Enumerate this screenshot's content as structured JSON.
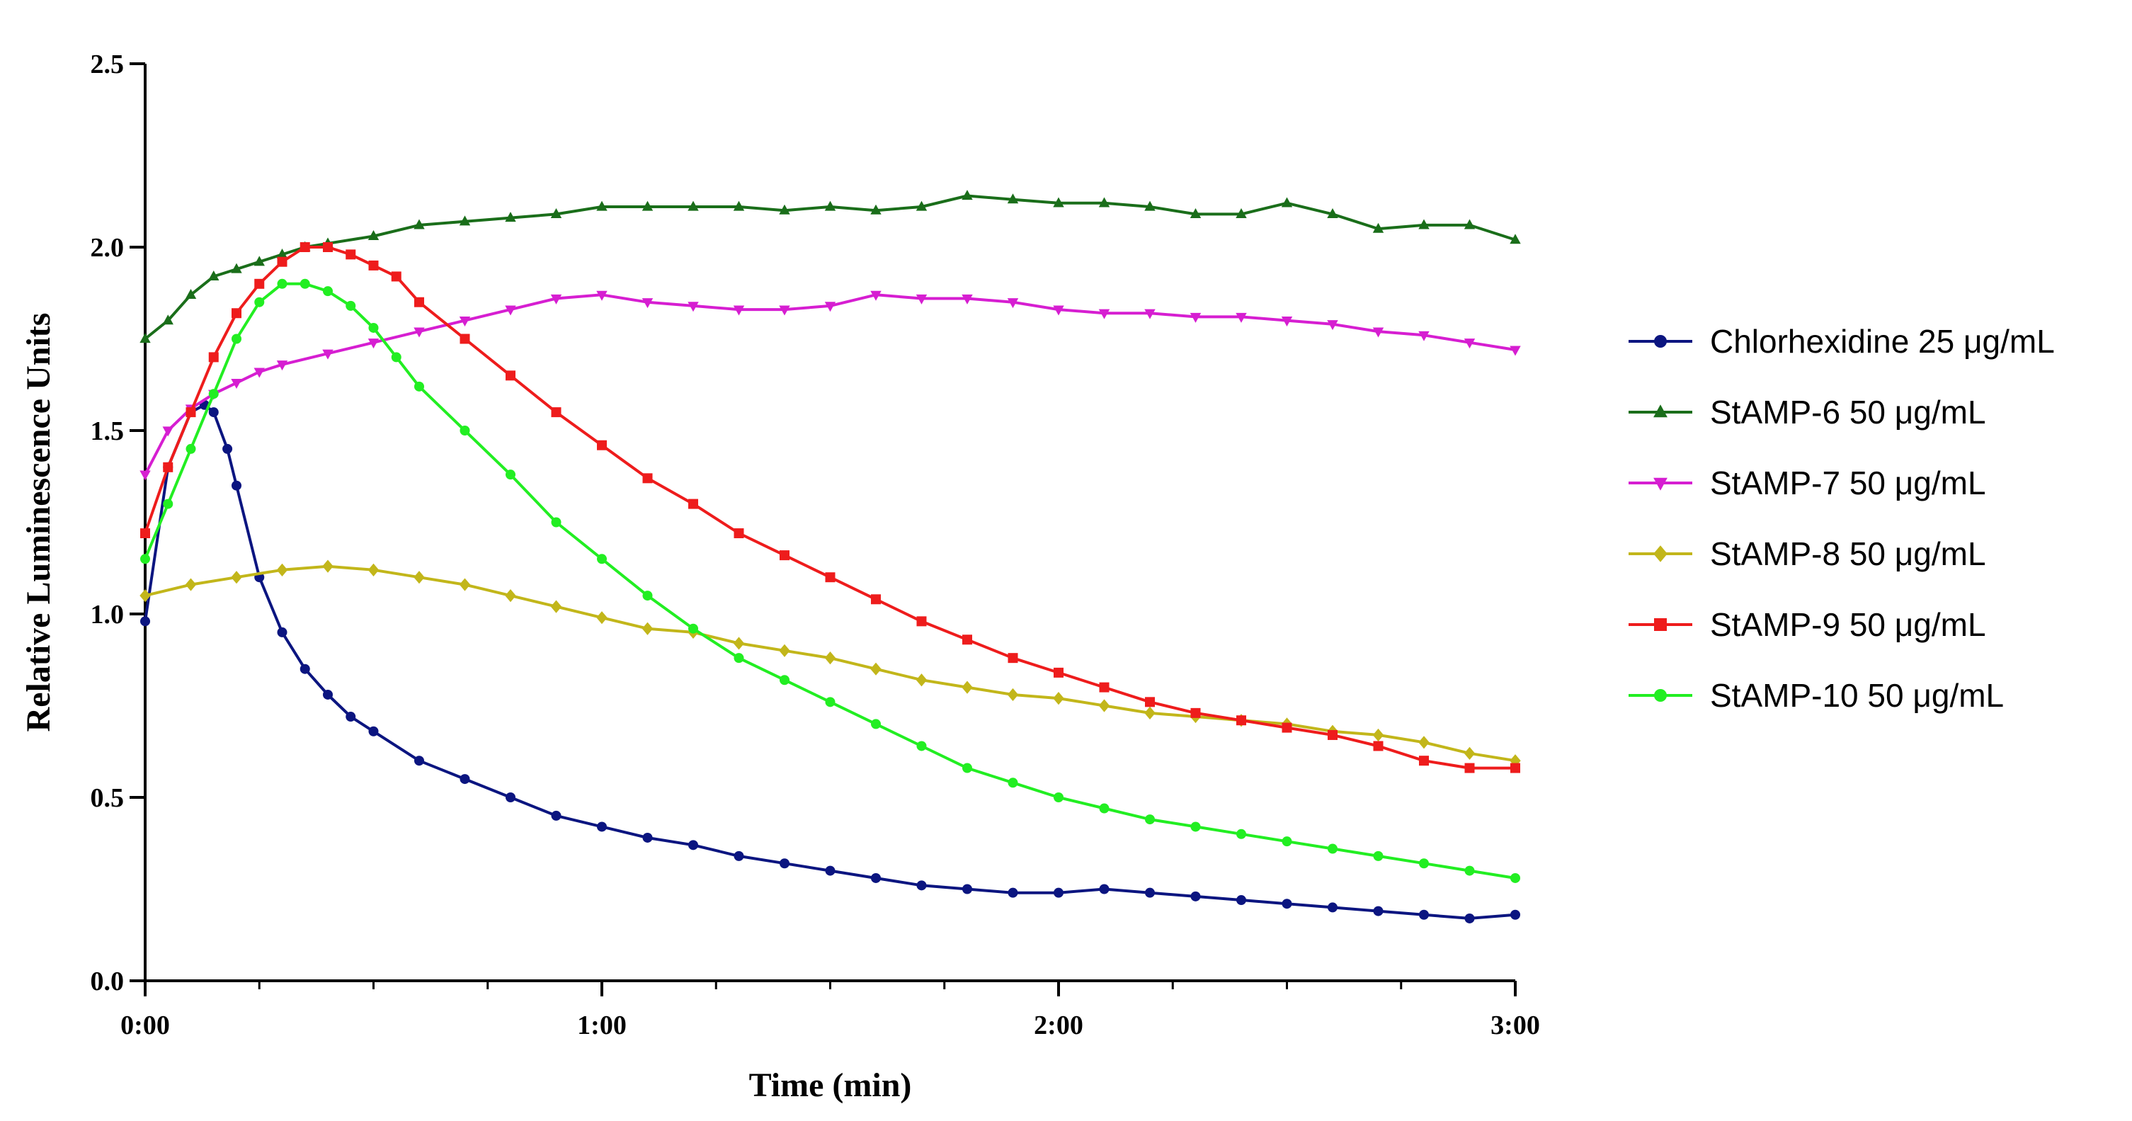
{
  "chart_data": {
    "type": "scatter",
    "title": "",
    "xlabel": "Time (min)",
    "ylabel": "Relative Luminescence Units",
    "xlim": [
      0,
      3
    ],
    "ylim": [
      0,
      2.5
    ],
    "grid": false,
    "legend_position": "right",
    "x_ticks": [
      {
        "value": 0,
        "label": "0:00"
      },
      {
        "value": 1,
        "label": "1:00"
      },
      {
        "value": 2,
        "label": "2:00"
      },
      {
        "value": 3,
        "label": "3:00"
      }
    ],
    "y_ticks": [
      {
        "value": 0,
        "label": "0.0"
      },
      {
        "value": 0.5,
        "label": "0.5"
      },
      {
        "value": 1,
        "label": "1.0"
      },
      {
        "value": 1.5,
        "label": "1.5"
      },
      {
        "value": 2,
        "label": "2.0"
      },
      {
        "value": 2.5,
        "label": "2.5"
      }
    ],
    "series": [
      {
        "name": "Chlorhexidine 25 μg/mL",
        "color": "#0b1580",
        "marker": "circle",
        "x": [
          0.0,
          0.05,
          0.1,
          0.13,
          0.15,
          0.18,
          0.2,
          0.25,
          0.3,
          0.35,
          0.4,
          0.45,
          0.5,
          0.6,
          0.7,
          0.8,
          0.9,
          1.0,
          1.1,
          1.2,
          1.3,
          1.4,
          1.5,
          1.6,
          1.7,
          1.8,
          1.9,
          2.0,
          2.1,
          2.2,
          2.3,
          2.4,
          2.5,
          2.6,
          2.7,
          2.8,
          2.9,
          3.0
        ],
        "y": [
          0.98,
          1.4,
          1.55,
          1.57,
          1.55,
          1.45,
          1.35,
          1.1,
          0.95,
          0.85,
          0.78,
          0.72,
          0.68,
          0.6,
          0.55,
          0.5,
          0.45,
          0.42,
          0.39,
          0.37,
          0.34,
          0.32,
          0.3,
          0.28,
          0.26,
          0.25,
          0.24,
          0.24,
          0.25,
          0.24,
          0.23,
          0.22,
          0.21,
          0.2,
          0.19,
          0.18,
          0.17,
          0.18
        ],
        "fit": [
          0.98,
          1.4,
          1.55,
          1.57,
          1.55,
          1.45,
          1.35,
          1.1,
          0.95,
          0.85,
          0.78,
          0.72,
          0.68,
          0.6,
          0.55,
          0.5,
          0.45,
          0.42,
          0.39,
          0.37,
          0.34,
          0.32,
          0.3,
          0.28,
          0.26,
          0.25,
          0.24,
          0.24,
          0.25,
          0.24,
          0.23,
          0.22,
          0.21,
          0.2,
          0.19,
          0.18,
          0.17,
          0.18
        ]
      },
      {
        "name": "StAMP-6 50 μg/mL",
        "color": "#1a6e1a",
        "marker": "triangle-up",
        "x": [
          0.0,
          0.05,
          0.1,
          0.15,
          0.2,
          0.25,
          0.3,
          0.35,
          0.4,
          0.5,
          0.6,
          0.7,
          0.8,
          0.9,
          1.0,
          1.1,
          1.2,
          1.3,
          1.4,
          1.5,
          1.6,
          1.7,
          1.8,
          1.9,
          2.0,
          2.1,
          2.2,
          2.3,
          2.4,
          2.5,
          2.6,
          2.7,
          2.8,
          2.9,
          3.0
        ],
        "y": [
          1.75,
          1.8,
          1.87,
          1.92,
          1.94,
          1.96,
          1.98,
          2.0,
          2.01,
          2.03,
          2.06,
          2.07,
          2.08,
          2.09,
          2.11,
          2.11,
          2.11,
          2.11,
          2.1,
          2.11,
          2.1,
          2.11,
          2.14,
          2.13,
          2.12,
          2.12,
          2.11,
          2.09,
          2.09,
          2.12,
          2.09,
          2.05,
          2.06,
          2.06,
          2.02
        ],
        "fit": [
          1.75,
          1.8,
          1.87,
          1.92,
          1.94,
          1.96,
          1.98,
          2.0,
          2.01,
          2.03,
          2.06,
          2.07,
          2.08,
          2.09,
          2.11,
          2.11,
          2.11,
          2.11,
          2.1,
          2.11,
          2.1,
          2.11,
          2.14,
          2.13,
          2.12,
          2.12,
          2.11,
          2.09,
          2.09,
          2.12,
          2.09,
          2.05,
          2.06,
          2.06,
          2.02
        ]
      },
      {
        "name": "StAMP-7 50 μg/mL",
        "color": "#d61ed1",
        "marker": "triangle-down",
        "x": [
          0.0,
          0.05,
          0.1,
          0.15,
          0.2,
          0.25,
          0.3,
          0.4,
          0.5,
          0.6,
          0.7,
          0.8,
          0.9,
          1.0,
          1.1,
          1.2,
          1.3,
          1.4,
          1.5,
          1.6,
          1.7,
          1.8,
          1.9,
          2.0,
          2.1,
          2.2,
          2.3,
          2.4,
          2.5,
          2.6,
          2.7,
          2.8,
          2.9,
          3.0
        ],
        "y": [
          1.38,
          1.5,
          1.56,
          1.6,
          1.63,
          1.66,
          1.68,
          1.71,
          1.74,
          1.77,
          1.8,
          1.83,
          1.86,
          1.87,
          1.85,
          1.84,
          1.83,
          1.83,
          1.84,
          1.87,
          1.86,
          1.86,
          1.85,
          1.83,
          1.82,
          1.82,
          1.81,
          1.81,
          1.8,
          1.79,
          1.77,
          1.76,
          1.74,
          1.72
        ],
        "fit": [
          1.38,
          1.5,
          1.56,
          1.6,
          1.63,
          1.66,
          1.68,
          1.71,
          1.74,
          1.77,
          1.8,
          1.83,
          1.86,
          1.87,
          1.85,
          1.84,
          1.83,
          1.83,
          1.84,
          1.87,
          1.86,
          1.86,
          1.85,
          1.83,
          1.82,
          1.82,
          1.81,
          1.81,
          1.8,
          1.79,
          1.77,
          1.76,
          1.74,
          1.72
        ]
      },
      {
        "name": "StAMP-8 50 μg/mL",
        "color": "#c2b61a",
        "marker": "diamond",
        "x": [
          0.0,
          0.1,
          0.2,
          0.3,
          0.4,
          0.5,
          0.6,
          0.7,
          0.8,
          0.9,
          1.0,
          1.1,
          1.2,
          1.3,
          1.4,
          1.5,
          1.6,
          1.7,
          1.8,
          1.9,
          2.0,
          2.1,
          2.2,
          2.3,
          2.4,
          2.5,
          2.6,
          2.7,
          2.8,
          2.9,
          3.0
        ],
        "y": [
          1.05,
          1.08,
          1.1,
          1.12,
          1.13,
          1.12,
          1.1,
          1.08,
          1.05,
          1.02,
          0.99,
          0.96,
          0.95,
          0.92,
          0.9,
          0.88,
          0.85,
          0.82,
          0.8,
          0.78,
          0.77,
          0.75,
          0.73,
          0.72,
          0.71,
          0.7,
          0.68,
          0.67,
          0.65,
          0.62,
          0.6
        ],
        "fit": [
          1.05,
          1.08,
          1.1,
          1.12,
          1.13,
          1.12,
          1.1,
          1.08,
          1.05,
          1.02,
          0.99,
          0.96,
          0.95,
          0.92,
          0.9,
          0.88,
          0.85,
          0.82,
          0.8,
          0.78,
          0.77,
          0.75,
          0.73,
          0.72,
          0.71,
          0.7,
          0.68,
          0.67,
          0.65,
          0.62,
          0.6
        ]
      },
      {
        "name": "StAMP-9 50 μg/mL",
        "color": "#ee1c1c",
        "marker": "square",
        "x": [
          0.0,
          0.05,
          0.1,
          0.15,
          0.2,
          0.25,
          0.3,
          0.35,
          0.4,
          0.45,
          0.5,
          0.55,
          0.6,
          0.7,
          0.8,
          0.9,
          1.0,
          1.1,
          1.2,
          1.3,
          1.4,
          1.5,
          1.6,
          1.7,
          1.8,
          1.9,
          2.0,
          2.1,
          2.2,
          2.3,
          2.4,
          2.5,
          2.6,
          2.7,
          2.8,
          2.9,
          3.0
        ],
        "y": [
          1.22,
          1.4,
          1.55,
          1.7,
          1.82,
          1.9,
          1.96,
          2.0,
          2.0,
          1.98,
          1.95,
          1.92,
          1.85,
          1.75,
          1.65,
          1.55,
          1.46,
          1.37,
          1.3,
          1.22,
          1.16,
          1.1,
          1.04,
          0.98,
          0.93,
          0.88,
          0.84,
          0.8,
          0.76,
          0.73,
          0.71,
          0.69,
          0.67,
          0.64,
          0.6,
          0.58,
          0.58
        ],
        "fit": [
          1.22,
          1.4,
          1.55,
          1.7,
          1.82,
          1.9,
          1.96,
          2.0,
          2.0,
          1.98,
          1.95,
          1.92,
          1.85,
          1.75,
          1.65,
          1.55,
          1.46,
          1.37,
          1.3,
          1.22,
          1.16,
          1.1,
          1.04,
          0.98,
          0.93,
          0.88,
          0.84,
          0.8,
          0.76,
          0.73,
          0.71,
          0.69,
          0.67,
          0.64,
          0.6,
          0.58,
          0.58
        ]
      },
      {
        "name": "StAMP-10 50 μg/mL",
        "color": "#22ee22",
        "marker": "circle",
        "x": [
          0.0,
          0.05,
          0.1,
          0.15,
          0.2,
          0.25,
          0.3,
          0.35,
          0.4,
          0.45,
          0.5,
          0.55,
          0.6,
          0.7,
          0.8,
          0.9,
          1.0,
          1.1,
          1.2,
          1.3,
          1.4,
          1.5,
          1.6,
          1.7,
          1.8,
          1.9,
          2.0,
          2.1,
          2.2,
          2.3,
          2.4,
          2.5,
          2.6,
          2.7,
          2.8,
          2.9,
          3.0
        ],
        "y": [
          1.15,
          1.3,
          1.45,
          1.6,
          1.75,
          1.85,
          1.9,
          1.9,
          1.88,
          1.84,
          1.78,
          1.7,
          1.62,
          1.5,
          1.38,
          1.25,
          1.15,
          1.05,
          0.96,
          0.88,
          0.82,
          0.76,
          0.7,
          0.64,
          0.58,
          0.54,
          0.5,
          0.47,
          0.44,
          0.42,
          0.4,
          0.38,
          0.36,
          0.34,
          0.32,
          0.3,
          0.28
        ],
        "fit": [
          1.15,
          1.3,
          1.45,
          1.6,
          1.75,
          1.85,
          1.9,
          1.9,
          1.88,
          1.84,
          1.78,
          1.7,
          1.62,
          1.5,
          1.38,
          1.25,
          1.15,
          1.05,
          0.96,
          0.88,
          0.82,
          0.76,
          0.7,
          0.64,
          0.58,
          0.54,
          0.5,
          0.47,
          0.44,
          0.42,
          0.4,
          0.38,
          0.36,
          0.34,
          0.32,
          0.3,
          0.28
        ]
      }
    ]
  }
}
